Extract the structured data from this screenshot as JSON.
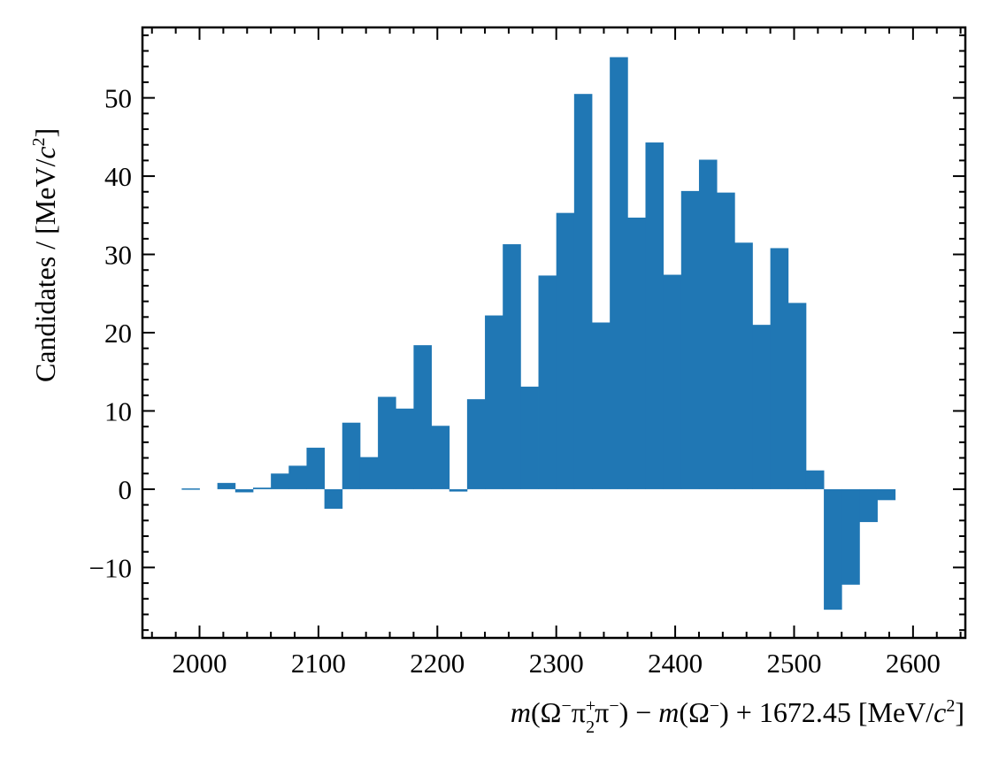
{
  "chart_data": {
    "type": "bar",
    "xlabel": "m(Ω⁻π₂⁺π⁻) − m(Ω⁻) + 1672.45 [MeV/c²]",
    "ylabel": "Candidates / [MeV/c²]",
    "xlim": [
      1952,
      2644
    ],
    "ylim": [
      -19,
      59
    ],
    "bin_width": 15,
    "x_ticks": [
      2000,
      2100,
      2200,
      2300,
      2400,
      2500,
      2600
    ],
    "y_ticks": [
      -10,
      0,
      10,
      20,
      30,
      40,
      50
    ],
    "x_tick_labels": [
      "2000",
      "2100",
      "2200",
      "2300",
      "2400",
      "2500",
      "2600"
    ],
    "y_tick_labels": [
      "−10",
      "0",
      "10",
      "20",
      "30",
      "40",
      "50"
    ],
    "bar_color": "#2077b4",
    "bins_left": [
      1985,
      2000,
      2015,
      2030,
      2045,
      2060,
      2075,
      2090,
      2105,
      2120,
      2135,
      2150,
      2165,
      2180,
      2195,
      2210,
      2225,
      2240,
      2255,
      2270,
      2285,
      2300,
      2315,
      2330,
      2345,
      2360,
      2375,
      2390,
      2405,
      2420,
      2435,
      2450,
      2465,
      2480,
      2495,
      2510,
      2525,
      2540,
      2555,
      2570,
      2585,
      2600
    ],
    "values": [
      0.1,
      0,
      0.8,
      -0.4,
      0.2,
      2.0,
      3.0,
      5.3,
      -2.5,
      8.5,
      4.1,
      11.8,
      10.3,
      18.4,
      8.1,
      -0.3,
      11.5,
      22.2,
      31.3,
      13.1,
      27.3,
      35.3,
      50.5,
      21.3,
      55.2,
      34.7,
      44.3,
      27.4,
      38.1,
      42.1,
      37.9,
      31.5,
      21.0,
      30.8,
      23.8,
      2.4,
      -15.4,
      -12.2,
      -4.2,
      -1.4,
      0,
      0
    ]
  }
}
